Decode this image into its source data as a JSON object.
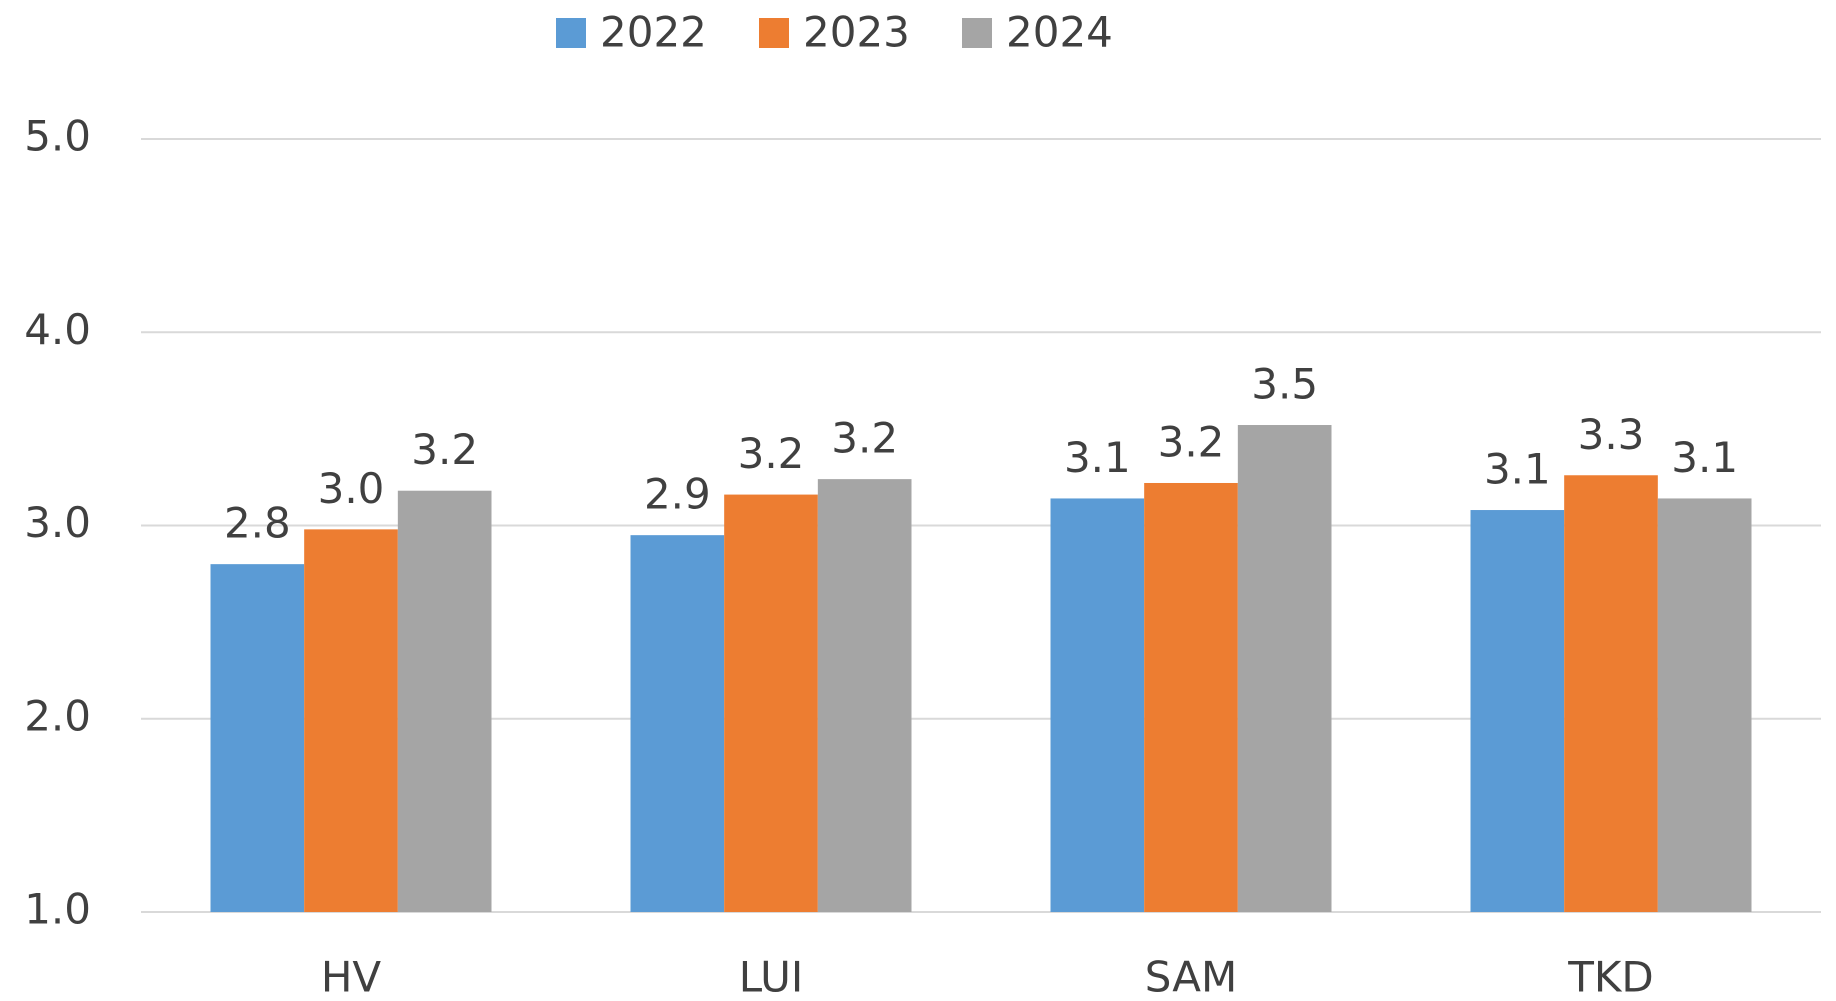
{
  "chart_data": {
    "type": "bar",
    "categories": [
      "HV",
      "LUI",
      "SAM",
      "TKD"
    ],
    "series": [
      {
        "name": "2022",
        "color": "#5b9bd5",
        "values": [
          2.8,
          2.95,
          3.14,
          3.08
        ],
        "value_labels": [
          "2.8",
          "2.9",
          "3.1",
          "3.1"
        ]
      },
      {
        "name": "2023",
        "color": "#ed7d31",
        "values": [
          2.98,
          3.16,
          3.22,
          3.26
        ],
        "value_labels": [
          "3.0",
          "3.2",
          "3.2",
          "3.3"
        ]
      },
      {
        "name": "2024",
        "color": "#a5a5a5",
        "values": [
          3.18,
          3.24,
          3.52,
          3.14
        ],
        "value_labels": [
          "3.2",
          "3.2",
          "3.5",
          "3.1"
        ]
      }
    ],
    "ylim": [
      1,
      5
    ],
    "yticks": [
      {
        "value": 1,
        "label": "1.0"
      },
      {
        "value": 2,
        "label": "2.0"
      },
      {
        "value": 3,
        "label": "3.0"
      },
      {
        "value": 4,
        "label": "4.0"
      },
      {
        "value": 5,
        "label": "5.0"
      }
    ],
    "grid": true,
    "legend": "top"
  }
}
